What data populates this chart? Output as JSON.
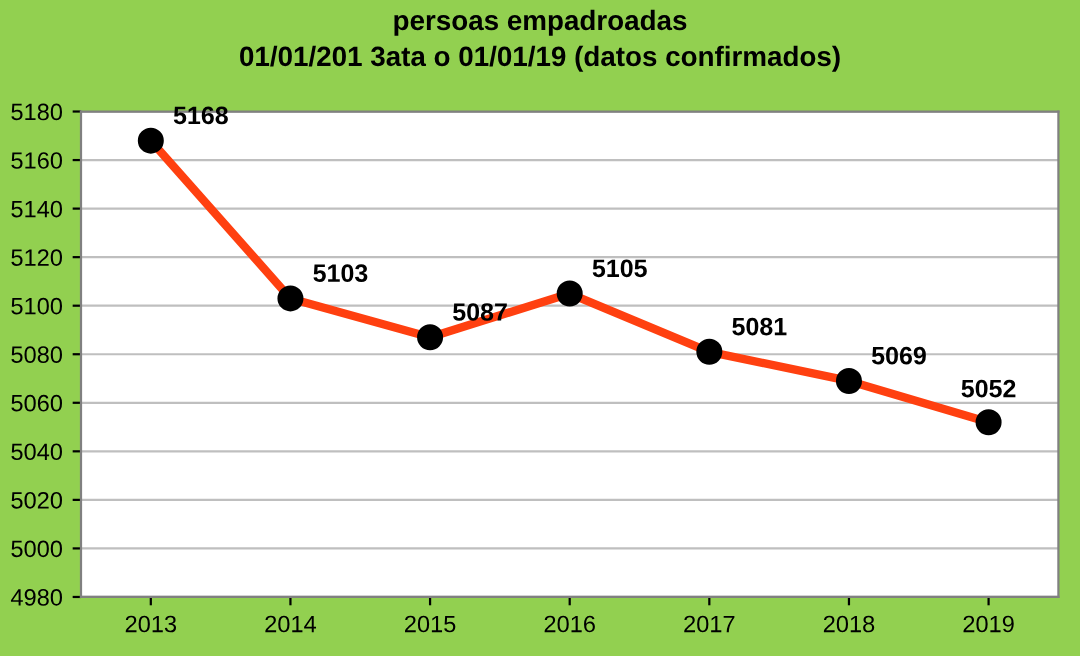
{
  "chart_data": {
    "type": "line",
    "title": "persoas empadroadas\n01/01/201 3ata o 01/01/19 (datos confirmados)",
    "categories": [
      "2013",
      "2014",
      "2015",
      "2016",
      "2017",
      "2018",
      "2019"
    ],
    "series": [
      {
        "values": [
          5168,
          5103,
          5087,
          5105,
          5081,
          5069,
          5052
        ],
        "color": "#ff4010"
      }
    ],
    "ylim": [
      4980,
      5180
    ],
    "yticks": [
      4980,
      5000,
      5020,
      5040,
      5060,
      5080,
      5100,
      5120,
      5140,
      5160,
      5180
    ],
    "grid": "y",
    "marker": "circle",
    "data_labels": true,
    "legend": false
  }
}
